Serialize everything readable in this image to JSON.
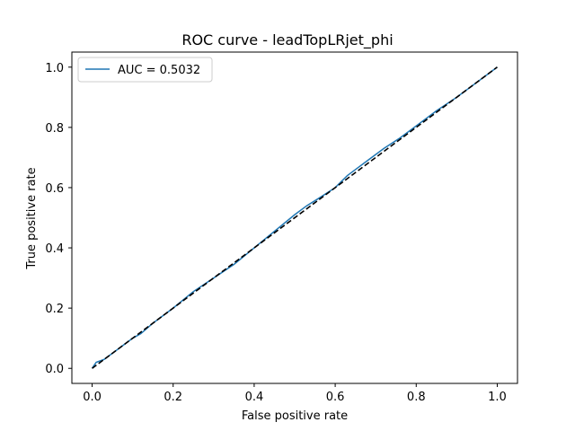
{
  "chart_data": {
    "type": "line",
    "title": "ROC curve - leadTopLRjet_phi",
    "xlabel": "False positive rate",
    "ylabel": "True positive rate",
    "xlim": [
      -0.05,
      1.05
    ],
    "ylim": [
      -0.05,
      1.05
    ],
    "xticks": [
      0.0,
      0.2,
      0.4,
      0.6,
      0.8,
      1.0
    ],
    "yticks": [
      0.0,
      0.2,
      0.4,
      0.6,
      0.8,
      1.0
    ],
    "xtick_labels": [
      "0.0",
      "0.2",
      "0.4",
      "0.6",
      "0.8",
      "1.0"
    ],
    "ytick_labels": [
      "0.0",
      "0.2",
      "0.4",
      "0.6",
      "0.8",
      "1.0"
    ],
    "grid": false,
    "legend_position": "top-left",
    "series": [
      {
        "name": "AUC = 0.5032",
        "color": "#1f77b4",
        "style": "solid",
        "x": [
          0.0,
          0.01,
          0.03,
          0.05,
          0.08,
          0.1,
          0.12,
          0.15,
          0.2,
          0.25,
          0.3,
          0.35,
          0.4,
          0.45,
          0.5,
          0.53,
          0.56,
          0.6,
          0.63,
          0.65,
          0.68,
          0.72,
          0.76,
          0.8,
          0.85,
          0.9,
          0.95,
          1.0
        ],
        "y": [
          0.0,
          0.02,
          0.03,
          0.05,
          0.08,
          0.1,
          0.115,
          0.15,
          0.2,
          0.255,
          0.3,
          0.345,
          0.4,
          0.455,
          0.51,
          0.54,
          0.565,
          0.6,
          0.64,
          0.66,
          0.69,
          0.73,
          0.765,
          0.805,
          0.855,
          0.9,
          0.95,
          1.0
        ]
      },
      {
        "name": "",
        "color": "#000000",
        "style": "dashed",
        "x": [
          0.0,
          1.0
        ],
        "y": [
          0.0,
          1.0
        ]
      }
    ]
  }
}
